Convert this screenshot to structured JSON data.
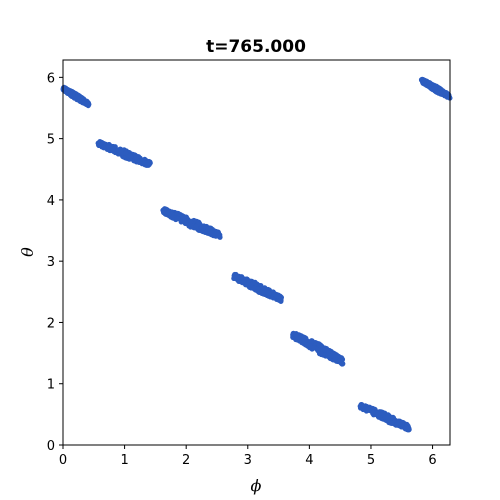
{
  "chart_data": {
    "type": "scatter",
    "title": "t=765.000",
    "xlabel": "ϕ",
    "ylabel": "θ",
    "xlim": [
      0,
      6.2832
    ],
    "ylim": [
      0,
      6.2832
    ],
    "xticks": [
      0,
      1,
      2,
      3,
      4,
      5,
      6
    ],
    "yticks": [
      0,
      1,
      2,
      3,
      4,
      5,
      6
    ],
    "grid": false,
    "legend": "none",
    "point_color": "#2c5cbf",
    "clusters": [
      {
        "x_range": [
          0.0,
          0.42
        ],
        "y_range": [
          5.56,
          5.82
        ]
      },
      {
        "x_range": [
          0.57,
          1.42
        ],
        "y_range": [
          4.58,
          4.93
        ]
      },
      {
        "x_range": [
          1.62,
          2.55
        ],
        "y_range": [
          3.42,
          3.83
        ]
      },
      {
        "x_range": [
          2.77,
          3.55
        ],
        "y_range": [
          2.38,
          2.76
        ]
      },
      {
        "x_range": [
          3.73,
          4.55
        ],
        "y_range": [
          1.36,
          1.8
        ]
      },
      {
        "x_range": [
          4.82,
          5.62
        ],
        "y_range": [
          0.28,
          0.64
        ]
      },
      {
        "x_range": [
          5.82,
          6.2832
        ],
        "y_range": [
          5.68,
          5.95
        ]
      }
    ]
  }
}
